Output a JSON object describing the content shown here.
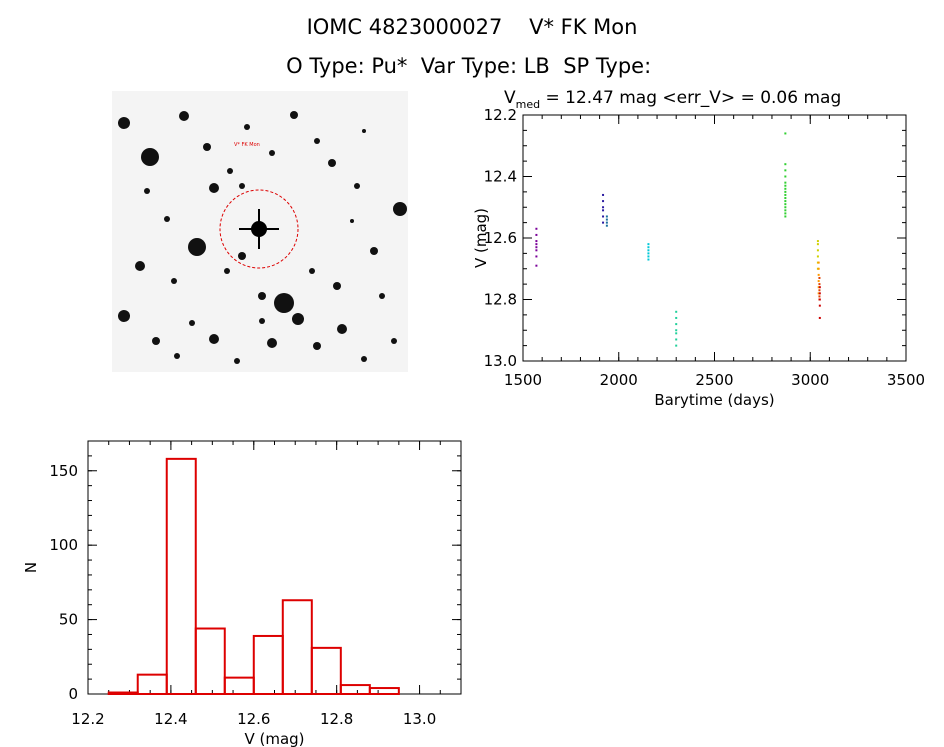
{
  "header": {
    "title_left": "IOMC 4823000027",
    "title_right": "V* FK Mon",
    "otype_label": "O Type:",
    "otype_value": "Pu*",
    "vartype_label": "Var Type:",
    "vartype_value": "LB",
    "sptype_label": "SP Type:",
    "sptype_value": ""
  },
  "stamp": {
    "target_label": "V* FK Mon"
  },
  "chart_data": [
    {
      "type": "scatter",
      "title_prefix": "V",
      "title_sub": "med",
      "title_rest": " = 12.47 mag <err_V> = 0.06 mag",
      "xlabel": "Barytime (days)",
      "ylabel": "V (mag)",
      "xlim": [
        1500,
        3500
      ],
      "ylim": [
        13.0,
        12.2
      ],
      "y_inverted": true,
      "xticks": [
        1500,
        2000,
        2500,
        3000,
        3500
      ],
      "yticks": [
        12.2,
        12.4,
        12.6,
        12.8,
        13.0
      ],
      "ytick_labels": [
        "12.2",
        "12.4",
        "12.6",
        "12.8",
        "13.0"
      ],
      "groups": [
        {
          "x": 1570,
          "color": "#7a0099",
          "y": [
            12.57,
            12.59,
            12.61,
            12.62,
            12.63,
            12.64,
            12.66,
            12.69
          ]
        },
        {
          "x": 1918,
          "color": "#2a1aa0",
          "y": [
            12.46,
            12.48,
            12.5,
            12.51,
            12.53,
            12.55
          ]
        },
        {
          "x": 1938,
          "color": "#1e6fa0",
          "y": [
            12.53,
            12.54,
            12.55,
            12.56
          ]
        },
        {
          "x": 2155,
          "color": "#00c8d8",
          "y": [
            12.62,
            12.63,
            12.64,
            12.65,
            12.66,
            12.67
          ]
        },
        {
          "x": 2300,
          "color": "#20d09a",
          "y": [
            12.84,
            12.86,
            12.88,
            12.9,
            12.91,
            12.93,
            12.95
          ]
        },
        {
          "x": 2870,
          "color": "#30d030",
          "y": [
            12.26,
            12.36,
            12.38,
            12.4,
            12.42,
            12.43,
            12.44,
            12.45,
            12.46,
            12.47,
            12.48,
            12.49,
            12.5,
            12.51,
            12.52,
            12.53
          ]
        },
        {
          "x": 3040,
          "color": "#d0d000",
          "y": [
            12.61,
            12.62,
            12.64,
            12.66,
            12.68,
            12.7
          ]
        },
        {
          "x": 3044,
          "color": "#ff9a00",
          "y": [
            12.68,
            12.7,
            12.72,
            12.74,
            12.76,
            12.78
          ]
        },
        {
          "x": 3048,
          "color": "#e04000",
          "y": [
            12.73,
            12.75,
            12.77,
            12.79,
            12.8
          ]
        },
        {
          "x": 3050,
          "color": "#cc0000",
          "y": [
            12.76,
            12.78,
            12.8,
            12.82,
            12.86
          ]
        }
      ]
    },
    {
      "type": "bar",
      "xlabel": "V (mag)",
      "ylabel": "N",
      "xlim": [
        12.2,
        13.1
      ],
      "ylim": [
        0,
        170
      ],
      "xticks": [
        12.2,
        12.4,
        12.6,
        12.8,
        13.0
      ],
      "xtick_labels": [
        "12.2",
        "12.4",
        "12.6",
        "12.8",
        "13.0"
      ],
      "yticks": [
        0,
        50,
        100,
        150
      ],
      "ytick_labels": [
        "0",
        "50",
        "100",
        "150"
      ],
      "bin_edges": [
        12.25,
        12.32,
        12.39,
        12.46,
        12.53,
        12.6,
        12.67,
        12.74,
        12.81,
        12.88,
        12.95
      ],
      "counts": [
        1,
        13,
        158,
        44,
        11,
        39,
        63,
        31,
        6,
        4
      ],
      "color": "#dd0000"
    }
  ]
}
